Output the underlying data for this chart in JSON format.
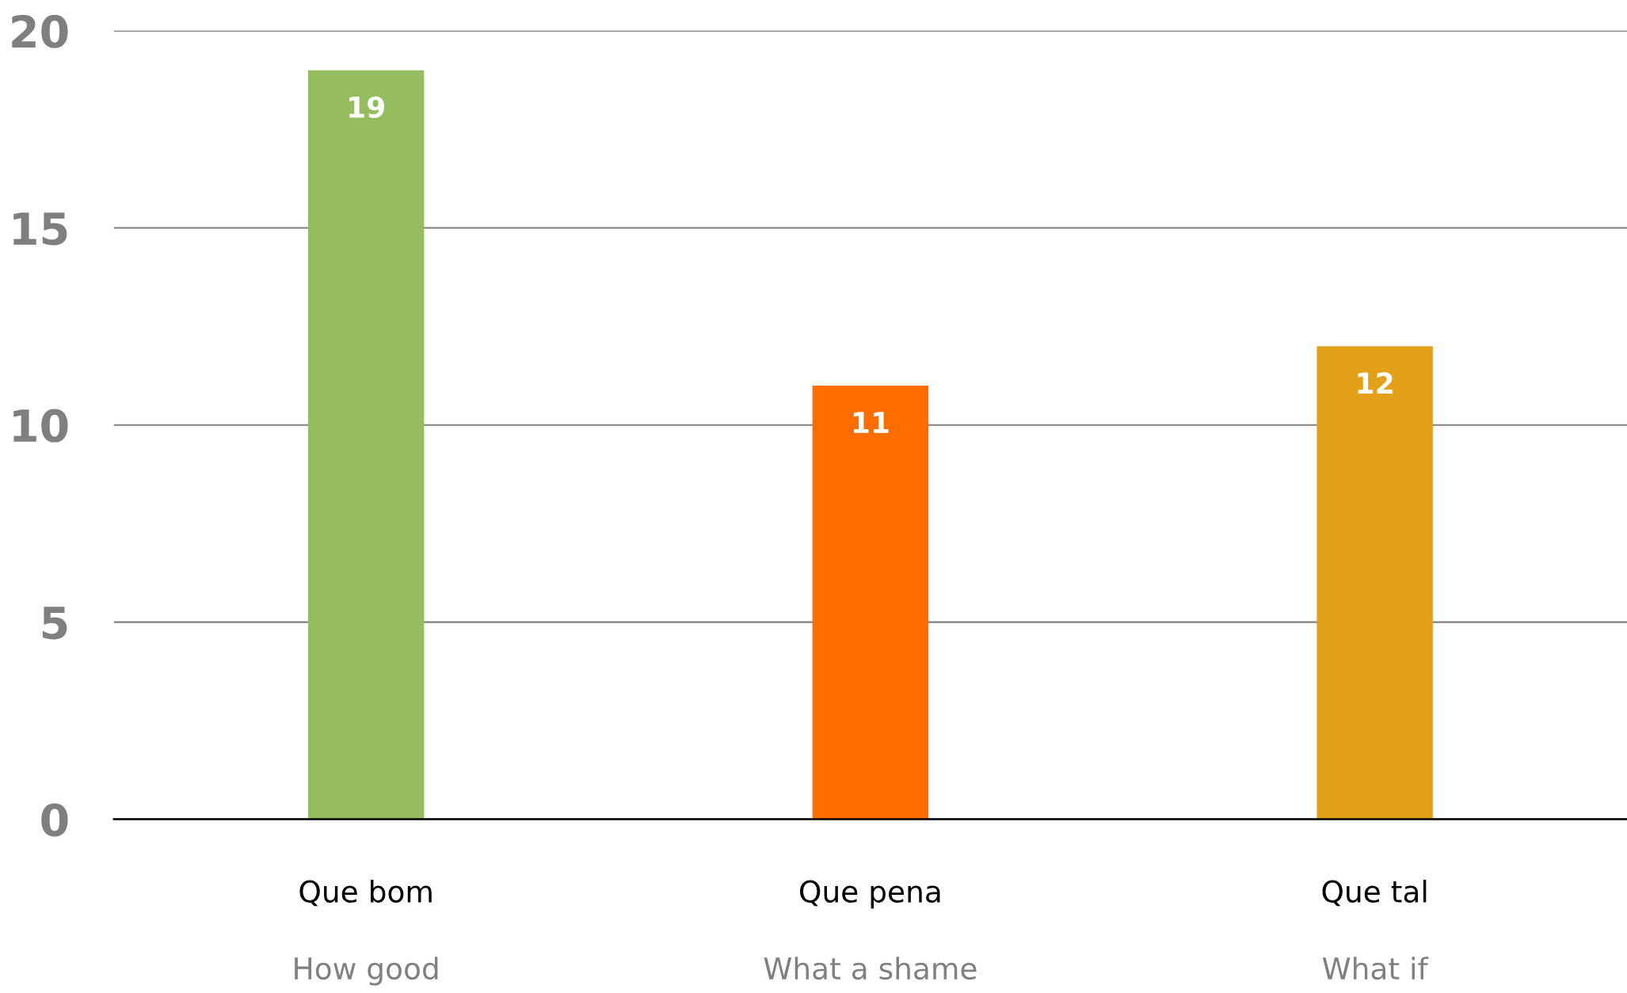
{
  "chart_data": {
    "type": "bar",
    "categories": [
      "Que bom\nHow good",
      "Que pena\nWhat a shame",
      "Que tal\nWhat if"
    ],
    "values": [
      19,
      11,
      12
    ],
    "colors": [
      "#95bc5f",
      "#ff6d00",
      "#e3a11a"
    ],
    "ylim": [
      0,
      20
    ],
    "yticks": [
      0,
      5,
      10,
      15,
      20
    ],
    "grid": "y",
    "data_labels": true
  }
}
